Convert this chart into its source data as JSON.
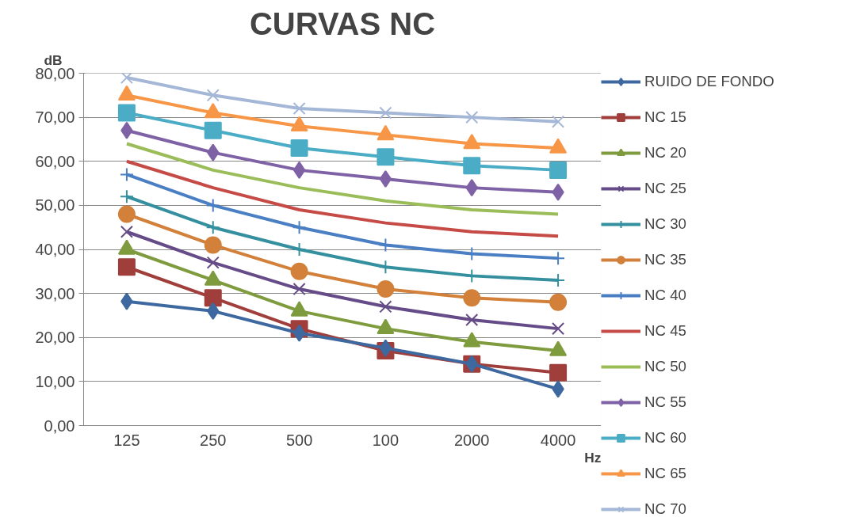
{
  "chart_data": {
    "type": "line",
    "title": "CURVAS NC",
    "ylabel": "dB",
    "xlabel": "Hz",
    "categories": [
      "125",
      "250",
      "500",
      "100",
      "2000",
      "4000"
    ],
    "ylim": [
      0,
      80
    ],
    "yticks": [
      {
        "value": 0,
        "label": "0,00"
      },
      {
        "value": 10,
        "label": "10,00"
      },
      {
        "value": 20,
        "label": "20,00"
      },
      {
        "value": 30,
        "label": "30,00"
      },
      {
        "value": 40,
        "label": "40,00"
      },
      {
        "value": 50,
        "label": "50,00"
      },
      {
        "value": 60,
        "label": "60,00"
      },
      {
        "value": 70,
        "label": "70,00"
      },
      {
        "value": 80,
        "label": "80,00"
      }
    ],
    "grid": "y",
    "legend": "right",
    "line_style": "solid",
    "series": [
      {
        "name": "RUIDO DE FONDO",
        "color": "#3d69a0",
        "marker": "diamond",
        "values": [
          28.2,
          26,
          21,
          17.6,
          14,
          8.3
        ]
      },
      {
        "name": "NC 15",
        "color": "#a03e3b",
        "marker": "square",
        "values": [
          36,
          29,
          22,
          17,
          14,
          12
        ]
      },
      {
        "name": "NC 20",
        "color": "#7e9b3e",
        "marker": "triangle",
        "values": [
          40,
          33,
          26,
          22,
          19,
          17
        ]
      },
      {
        "name": "NC 25",
        "color": "#654b87",
        "marker": "x",
        "values": [
          44,
          37,
          31,
          27,
          24,
          22
        ]
      },
      {
        "name": "NC 30",
        "color": "#34909f",
        "marker": "cross",
        "values": [
          52,
          45,
          40,
          36,
          34,
          33
        ]
      },
      {
        "name": "NC 35",
        "color": "#d2803a",
        "marker": "circle",
        "values": [
          48,
          41,
          35,
          31,
          29,
          28
        ]
      },
      {
        "name": "NC 40",
        "color": "#4a7fc4",
        "marker": "cross",
        "values": [
          57,
          50,
          45,
          41,
          39,
          38
        ]
      },
      {
        "name": "NC 45",
        "color": "#c64b47",
        "marker": "none",
        "values": [
          60,
          54,
          49,
          46,
          44,
          43
        ]
      },
      {
        "name": "NC 50",
        "color": "#9bbd59",
        "marker": "none",
        "values": [
          64,
          58,
          54,
          51,
          49,
          48
        ]
      },
      {
        "name": "NC 55",
        "color": "#7f62a6",
        "marker": "diamond",
        "values": [
          67,
          62,
          58,
          56,
          54,
          53
        ]
      },
      {
        "name": "NC 60",
        "color": "#4bacc6",
        "marker": "square",
        "values": [
          71,
          67,
          63,
          61,
          59,
          58
        ]
      },
      {
        "name": "NC 65",
        "color": "#f79646",
        "marker": "triangle",
        "values": [
          75,
          71,
          68,
          66,
          64,
          63
        ]
      },
      {
        "name": "NC 70",
        "color": "#a5b7d6",
        "marker": "x",
        "values": [
          79,
          75,
          72,
          71,
          70,
          69
        ]
      }
    ]
  }
}
